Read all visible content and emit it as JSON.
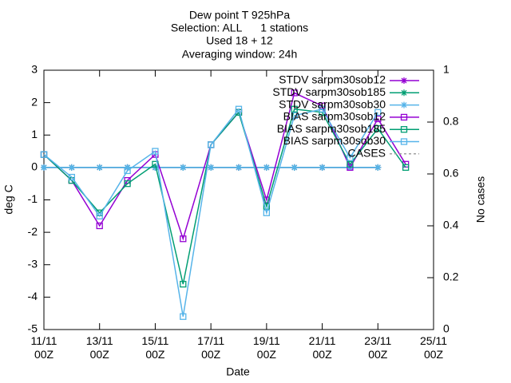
{
  "chart_data": {
    "type": "line",
    "title": [
      "Dew point T 925hPa",
      "Selection: ALL      1 stations",
      "Used 18 + 12",
      "Averaging window: 24h"
    ],
    "x_label": "Date",
    "y_label": "deg C",
    "y2_label": "No cases",
    "x": [
      "11/11 00Z",
      "12/11 00Z",
      "13/11 00Z",
      "14/11 00Z",
      "15/11 00Z",
      "16/11 00Z",
      "17/11 00Z",
      "18/11 00Z",
      "19/11 00Z",
      "20/11 00Z",
      "21/11 00Z",
      "22/11 00Z",
      "23/11 00Z",
      "24/11 00Z"
    ],
    "xlim": [
      "11/11 00Z",
      "25/11 00Z"
    ],
    "xticks": [
      "11/11 00Z",
      "13/11 00Z",
      "15/11 00Z",
      "17/11 00Z",
      "19/11 00Z",
      "21/11 00Z",
      "23/11 00Z",
      "25/11 00Z"
    ],
    "ylim": [
      -5,
      3
    ],
    "yticks": [
      -5,
      -4,
      -3,
      -2,
      -1,
      0,
      1,
      2,
      3
    ],
    "y2lim": [
      0,
      1
    ],
    "y2ticks": [
      0,
      0.2,
      0.4,
      0.6,
      0.8,
      1
    ],
    "legend": "upper right",
    "series": [
      {
        "name": "STDV sarpm30sob12",
        "color": "#9400d3",
        "marker": "star",
        "values": [
          0,
          0,
          0,
          0,
          0,
          0,
          0,
          0,
          0,
          0,
          0,
          0,
          0,
          null
        ]
      },
      {
        "name": "STDV sarpm30sob185",
        "color": "#009e73",
        "marker": "star",
        "values": [
          0,
          0,
          0,
          0,
          0,
          0,
          0,
          0,
          0,
          0,
          0,
          0,
          0,
          null
        ]
      },
      {
        "name": "STDV sarpm30sob30",
        "color": "#56b4e9",
        "marker": "star",
        "values": [
          0,
          0,
          0,
          0,
          0,
          0,
          0,
          0,
          0,
          0,
          0,
          0,
          0,
          null
        ]
      },
      {
        "name": "BIAS sarpm30sob12",
        "color": "#9400d3",
        "marker": "square",
        "values": [
          0.4,
          -0.4,
          -1.8,
          -0.4,
          0.4,
          -2.2,
          0.7,
          1.7,
          -1.0,
          2.3,
          1.9,
          0.0,
          1.5,
          0.1
        ]
      },
      {
        "name": "BIAS sarpm30sob185",
        "color": "#009e73",
        "marker": "square",
        "values": [
          0.4,
          -0.4,
          -1.4,
          -0.5,
          0.1,
          -3.6,
          0.7,
          1.7,
          -1.2,
          1.8,
          1.7,
          0.1,
          1.2,
          0.0
        ]
      },
      {
        "name": "BIAS sarpm30sob30",
        "color": "#56b4e9",
        "marker": "square",
        "values": [
          0.4,
          -0.3,
          -1.5,
          -0.1,
          0.5,
          -4.6,
          0.7,
          1.8,
          -1.4,
          1.6,
          1.8,
          0.3,
          1.7,
          null
        ]
      },
      {
        "name": "CASES",
        "color": "#a0a0a0",
        "marker": "dash",
        "axis": "y2",
        "values": [
          null,
          null,
          null,
          null,
          null,
          null,
          null,
          null,
          null,
          null,
          null,
          null,
          null,
          null
        ]
      }
    ]
  }
}
